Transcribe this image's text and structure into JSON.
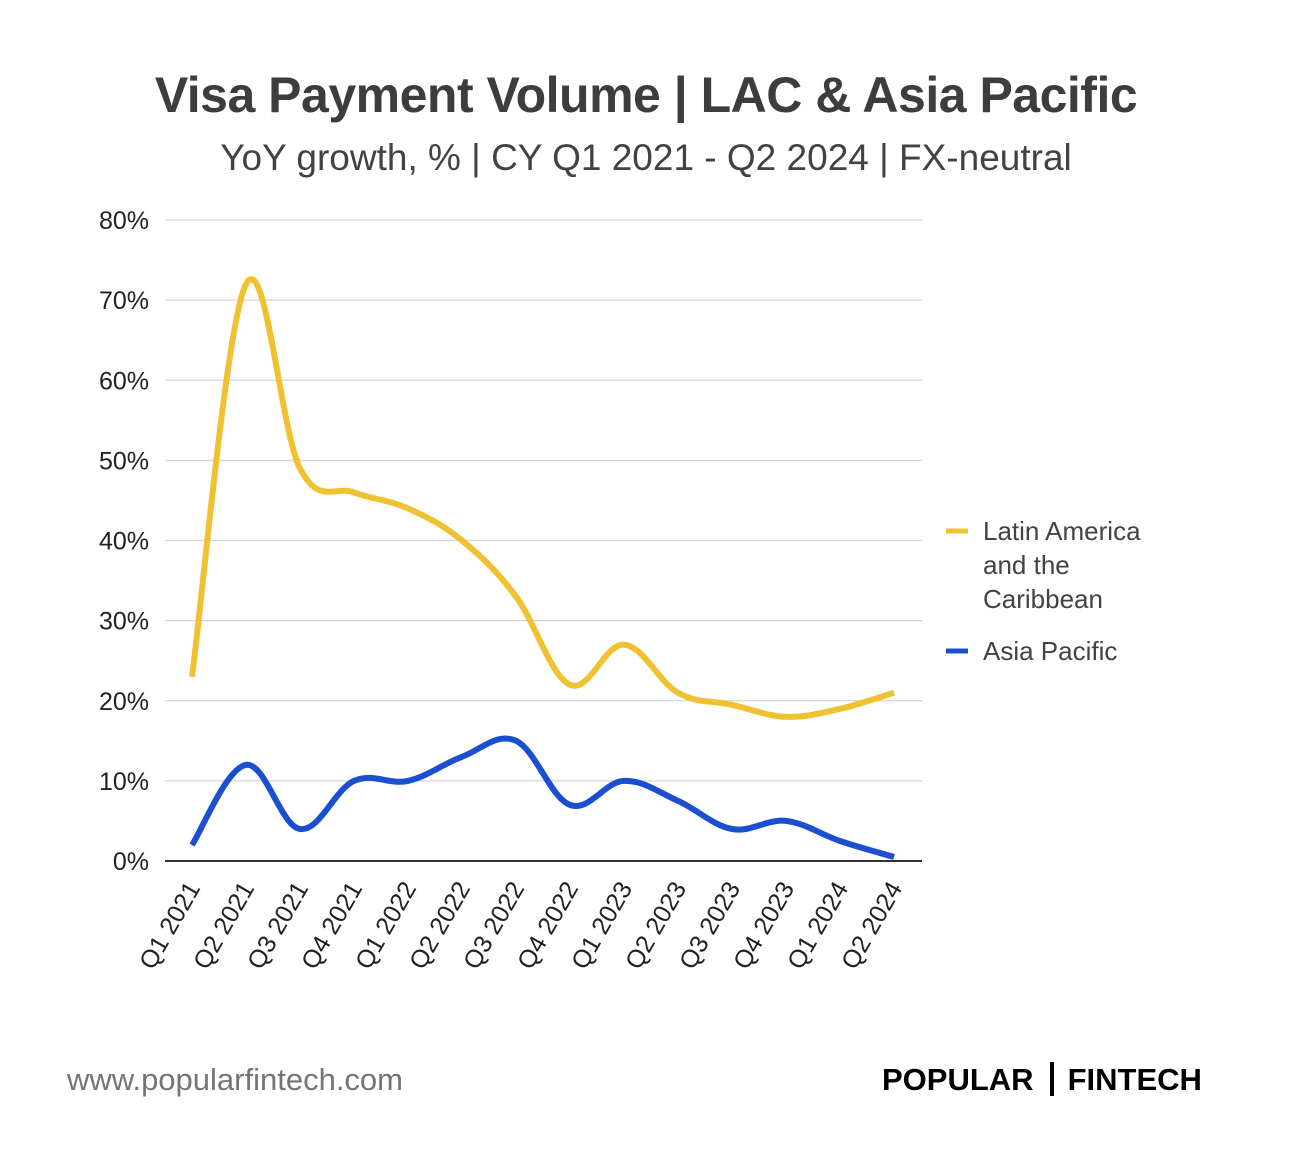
{
  "colors": {
    "latam": "#F0C232",
    "apac": "#1A4FD1",
    "grid": "#d6d6d6",
    "axis": "#333333"
  },
  "chart_data": {
    "type": "line",
    "title": "Visa Payment Volume | LAC & Asia Pacific",
    "subtitle": "YoY growth, % | CY Q1 2021 - Q2 2024 | FX-neutral",
    "categories": [
      "Q1 2021",
      "Q2 2021",
      "Q3 2021",
      "Q4 2021",
      "Q1 2022",
      "Q2 2022",
      "Q3 2022",
      "Q4 2022",
      "Q1 2023",
      "Q2 2023",
      "Q3 2023",
      "Q4 2023",
      "Q1 2024",
      "Q2 2024"
    ],
    "series": [
      {
        "name": "Latin America and the Caribbean",
        "legend_lines": [
          "Latin America",
          "and the",
          "Caribbean"
        ],
        "color": "#F0C232",
        "values": [
          23,
          72,
          49,
          46,
          44,
          40,
          33,
          22,
          27,
          21,
          19.5,
          18,
          19,
          21
        ]
      },
      {
        "name": "Asia Pacific",
        "legend_lines": [
          "Asia Pacific"
        ],
        "color": "#1A4FD1",
        "values": [
          2,
          12,
          4,
          10,
          10,
          13,
          15,
          7,
          10,
          7.5,
          4,
          5,
          2.5,
          0.5
        ]
      }
    ],
    "y_ticks": [
      "0%",
      "10%",
      "20%",
      "30%",
      "40%",
      "50%",
      "60%",
      "70%",
      "80%"
    ],
    "ylim": [
      0,
      80
    ],
    "y_unit": "%",
    "grid": true,
    "legend_position": "right"
  },
  "footer": {
    "url": "www.popularfintech.com",
    "brand_left": "POPULAR",
    "brand_right": "FINTECH"
  }
}
